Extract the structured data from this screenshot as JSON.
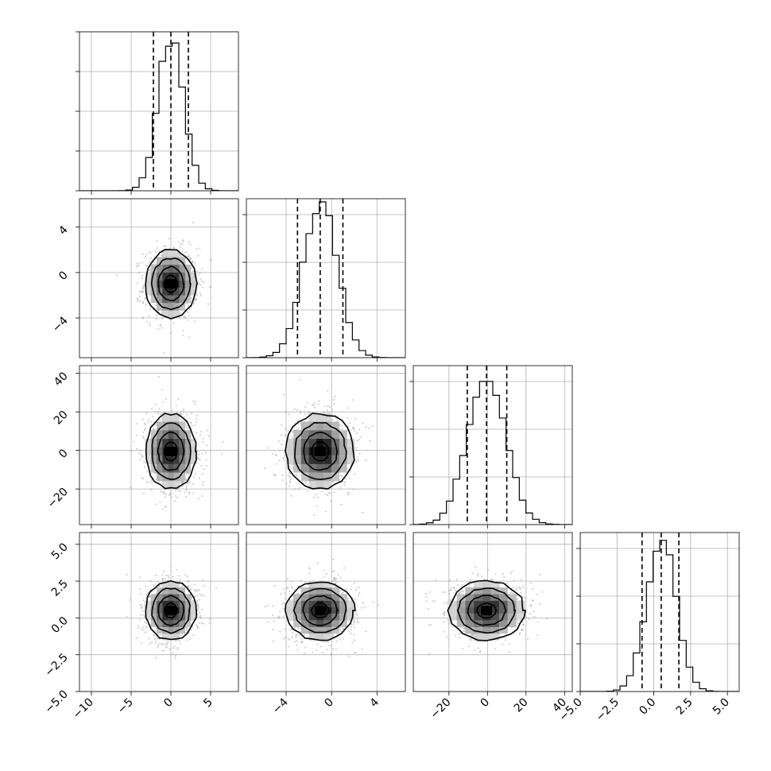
{
  "colors": {
    "line": "#000000",
    "grid": "#b0b0b0",
    "scatter": "#9a9a9a"
  },
  "chart_data": {
    "type": "corner",
    "grid": true,
    "legend": "none",
    "parameters": [
      {
        "key": "p0",
        "mean": 0.0,
        "sd": 1.6,
        "range": [
          -11.5,
          8.5
        ],
        "ticks": [
          -10,
          -5,
          0,
          5
        ],
        "tick_labels": [
          "−10",
          "−5",
          "0",
          "5"
        ],
        "quantiles": [
          -2.2,
          0.0,
          2.2
        ]
      },
      {
        "key": "p1",
        "mean": -1.0,
        "sd": 1.5,
        "range": [
          -7.5,
          6.5
        ],
        "ticks": [
          -4,
          0,
          4
        ],
        "tick_labels": [
          "−4",
          "0",
          "4"
        ],
        "quantiles": [
          -3.0,
          -1.0,
          1.0
        ]
      },
      {
        "key": "p2",
        "mean": -0.5,
        "sd": 9.8,
        "range": [
          -38.5,
          44.0
        ],
        "ticks": [
          -20,
          0,
          20,
          40
        ],
        "tick_labels": [
          "−20",
          "0",
          "20",
          "40"
        ],
        "quantiles": [
          -10.5,
          -0.5,
          10.0
        ]
      },
      {
        "key": "p3",
        "mean": 0.5,
        "sd": 1.0,
        "range": [
          -5.0,
          5.8
        ],
        "ticks": [
          -5.0,
          -2.5,
          0.0,
          2.5,
          5.0
        ],
        "tick_labels": [
          "−5.0",
          "−2.5",
          "0.0",
          "2.5",
          "5.0"
        ],
        "quantiles": [
          -0.8,
          0.5,
          1.7
        ]
      }
    ],
    "diagonal_hist_ticks": [
      {
        "ylim": [
          0,
          1.0
        ],
        "ticks": [
          0,
          0.25,
          0.5,
          0.75,
          1.0
        ]
      },
      {
        "ylim": [
          0,
          1.0
        ],
        "ticks": [
          0,
          0.3,
          0.6,
          0.9
        ]
      },
      {
        "ylim": [
          0,
          1.0
        ],
        "ticks": [
          0,
          0.3,
          0.6,
          0.9
        ]
      },
      {
        "ylim": [
          0,
          1.0
        ],
        "ticks": [
          0,
          0.3,
          0.6,
          0.9
        ]
      }
    ],
    "contour_levels_sigma": [
      0.5,
      1.0,
      1.5,
      2.0
    ],
    "scatter_points_per_panel": 900
  }
}
